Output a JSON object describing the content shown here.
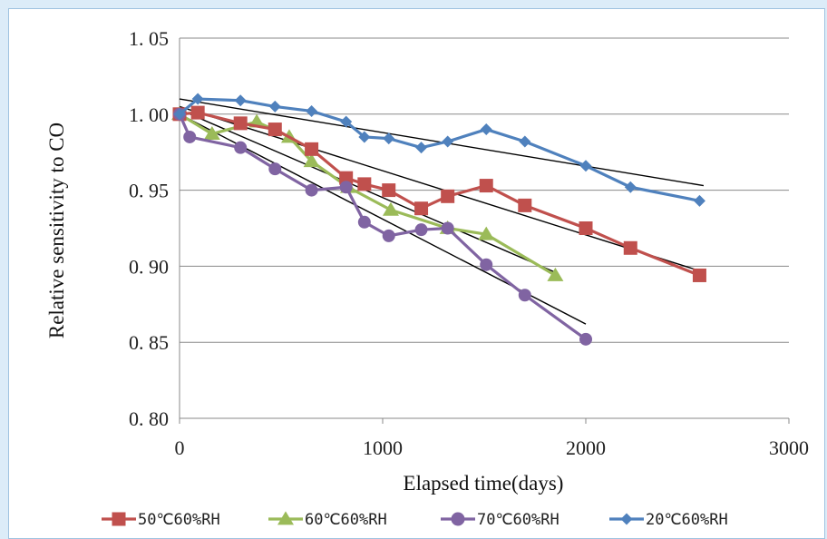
{
  "chart_data": {
    "type": "line",
    "xlabel": "Elapsed time(days)",
    "ylabel": "Relative sensitivity to CO",
    "xlim": [
      0,
      3000
    ],
    "ylim": [
      0.8,
      1.05
    ],
    "x_ticks": [
      "0",
      "1000",
      "2000",
      "3000"
    ],
    "y_ticks": [
      "0. 80",
      "0. 85",
      "0. 90",
      "0. 95",
      "1. 00",
      "1. 05"
    ],
    "grid": "horizontal",
    "legend_position": "bottom",
    "series": [
      {
        "name": "50℃60%RH",
        "color": "#c0504d",
        "marker": "square",
        "x": [
          0,
          90,
          300,
          470,
          650,
          820,
          910,
          1030,
          1190,
          1320,
          1510,
          1700,
          2000,
          2220,
          2560
        ],
        "y": [
          1.0,
          1.001,
          0.994,
          0.99,
          0.977,
          0.958,
          0.954,
          0.95,
          0.938,
          0.946,
          0.953,
          0.94,
          0.925,
          0.912,
          0.894
        ]
      },
      {
        "name": "60℃60%RH",
        "color": "#9bbb59",
        "marker": "triangle",
        "x": [
          0,
          160,
          380,
          540,
          650,
          830,
          1040,
          1320,
          1510,
          1850
        ],
        "y": [
          1.0,
          0.987,
          0.995,
          0.985,
          0.969,
          0.952,
          0.937,
          0.925,
          0.921,
          0.894
        ]
      },
      {
        "name": "70℃60%RH",
        "color": "#8064a2",
        "marker": "circle",
        "x": [
          0,
          50,
          300,
          470,
          650,
          820,
          910,
          1030,
          1190,
          1320,
          1510,
          1700,
          2000
        ],
        "y": [
          1.0,
          0.985,
          0.978,
          0.964,
          0.95,
          0.952,
          0.929,
          0.92,
          0.924,
          0.925,
          0.901,
          0.881,
          0.852
        ]
      },
      {
        "name": "20℃60%RH",
        "color": "#4f81bd",
        "marker": "diamond",
        "x": [
          0,
          90,
          300,
          470,
          650,
          820,
          910,
          1030,
          1190,
          1320,
          1510,
          1700,
          2000,
          2220,
          2560
        ],
        "y": [
          1.0,
          1.01,
          1.009,
          1.005,
          1.002,
          0.995,
          0.985,
          0.984,
          0.978,
          0.982,
          0.99,
          0.982,
          0.966,
          0.952,
          0.943
        ]
      }
    ],
    "trendlines": [
      {
        "x": [
          0,
          2580
        ],
        "y": [
          1.01,
          0.953
        ]
      },
      {
        "x": [
          0,
          2560
        ],
        "y": [
          1.005,
          0.897
        ]
      },
      {
        "x": [
          0,
          1850
        ],
        "y": [
          1.003,
          0.896
        ]
      },
      {
        "x": [
          0,
          2000
        ],
        "y": [
          1.0,
          0.862
        ]
      }
    ]
  }
}
